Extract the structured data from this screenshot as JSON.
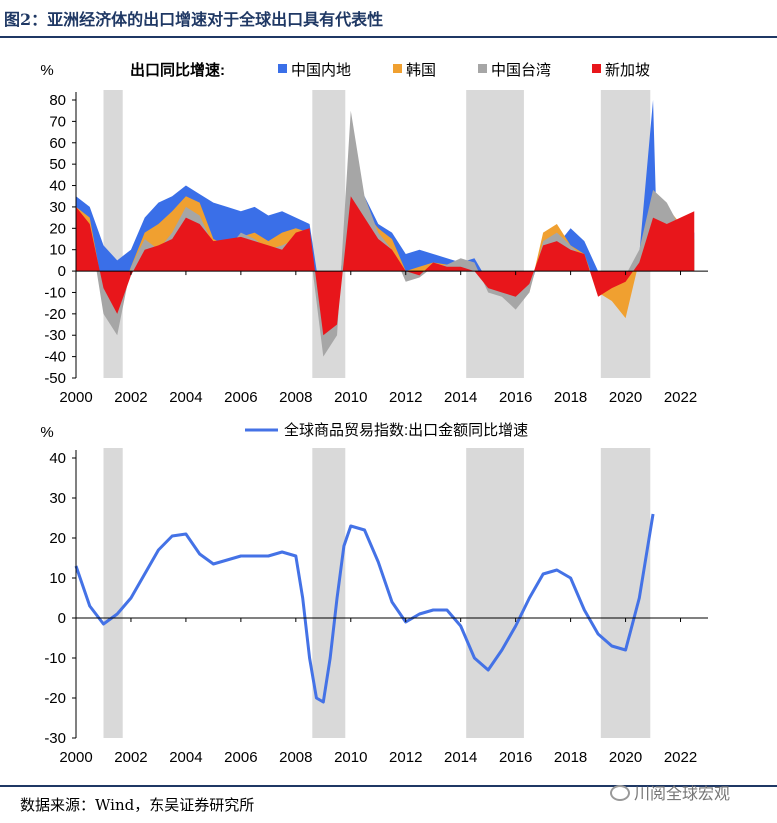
{
  "figure": {
    "title": "图2：亚洲经济体的出口增速对于全球出口具有代表性",
    "source": "数据来源：Wind，东吴证券研究所",
    "watermark": "川阅全球宏观"
  },
  "chart_data": [
    {
      "type": "area",
      "ylabel": "%",
      "legend_title": "出口同比增速:",
      "legend_position": "top",
      "ylim": [
        -50,
        80
      ],
      "yticks": [
        80,
        70,
        60,
        50,
        40,
        30,
        20,
        10,
        0,
        -10,
        -20,
        -30,
        -40,
        -50
      ],
      "xlim": [
        2000,
        2023.0
      ],
      "xticks": [
        "2000",
        "2002",
        "2004",
        "2006",
        "2008",
        "2010",
        "2012",
        "2014",
        "2016",
        "2018",
        "2020",
        "2022"
      ],
      "shaded_periods": [
        [
          2001.0,
          2001.7
        ],
        [
          2008.6,
          2009.8
        ],
        [
          2014.2,
          2016.3
        ],
        [
          2019.1,
          2020.9
        ]
      ],
      "series": [
        {
          "name": "中国内地",
          "color": "#3a6fe8",
          "x": [
            2000.0,
            2000.5,
            2001.0,
            2001.5,
            2002.0,
            2002.5,
            2003.0,
            2003.5,
            2004.0,
            2004.5,
            2005.0,
            2005.5,
            2006.0,
            2006.5,
            2007.0,
            2007.5,
            2008.0,
            2008.5,
            2009.0,
            2009.5,
            2010.0,
            2010.5,
            2011.0,
            2011.5,
            2012.0,
            2012.5,
            2013.0,
            2013.5,
            2014.0,
            2014.5,
            2015.0,
            2015.5,
            2016.0,
            2016.5,
            2017.0,
            2017.5,
            2018.0,
            2018.5,
            2019.0,
            2019.5,
            2020.0,
            2020.5,
            2021.0,
            2021.1,
            2021.2,
            2021.5,
            2022.0,
            2022.5
          ],
          "values": [
            35,
            30,
            12,
            5,
            10,
            25,
            32,
            35,
            40,
            36,
            32,
            30,
            28,
            30,
            26,
            28,
            25,
            22,
            -20,
            -15,
            40,
            35,
            22,
            18,
            8,
            10,
            8,
            6,
            4,
            6,
            -5,
            -3,
            -10,
            -8,
            10,
            12,
            20,
            14,
            0,
            -2,
            -15,
            8,
            80,
            35,
            30,
            25,
            20,
            18
          ]
        },
        {
          "name": "韩国",
          "color": "#f0a030",
          "x": [
            2000.0,
            2000.5,
            2001.0,
            2001.5,
            2002.0,
            2002.5,
            2003.0,
            2003.5,
            2004.0,
            2004.5,
            2005.0,
            2005.5,
            2006.0,
            2006.5,
            2007.0,
            2007.5,
            2008.0,
            2008.5,
            2009.0,
            2009.5,
            2010.0,
            2010.5,
            2011.0,
            2011.5,
            2012.0,
            2012.5,
            2013.0,
            2013.5,
            2014.0,
            2014.5,
            2015.0,
            2015.5,
            2016.0,
            2016.5,
            2017.0,
            2017.5,
            2018.0,
            2018.5,
            2019.0,
            2019.5,
            2020.0,
            2020.5,
            2021.0,
            2021.5,
            2022.0,
            2022.5
          ],
          "values": [
            30,
            25,
            -10,
            -15,
            2,
            18,
            22,
            28,
            35,
            32,
            15,
            12,
            16,
            18,
            14,
            18,
            20,
            18,
            -30,
            -20,
            30,
            28,
            20,
            15,
            0,
            2,
            4,
            3,
            3,
            2,
            -8,
            -12,
            -15,
            -10,
            18,
            22,
            12,
            8,
            -10,
            -14,
            -22,
            5,
            28,
            30,
            22,
            15
          ]
        },
        {
          "name": "中国台湾",
          "color": "#a6a6a6",
          "x": [
            2000.0,
            2000.5,
            2001.0,
            2001.5,
            2002.0,
            2002.5,
            2003.0,
            2003.5,
            2004.0,
            2004.5,
            2005.0,
            2005.5,
            2006.0,
            2006.5,
            2007.0,
            2007.5,
            2008.0,
            2008.5,
            2009.0,
            2009.5,
            2010.0,
            2010.5,
            2011.0,
            2011.5,
            2012.0,
            2012.5,
            2013.0,
            2013.5,
            2014.0,
            2014.5,
            2015.0,
            2015.5,
            2016.0,
            2016.5,
            2017.0,
            2017.5,
            2018.0,
            2018.5,
            2019.0,
            2019.5,
            2020.0,
            2020.5,
            2021.0,
            2021.5,
            2022.0,
            2022.5
          ],
          "values": [
            25,
            20,
            -20,
            -30,
            2,
            15,
            10,
            18,
            30,
            26,
            12,
            10,
            18,
            15,
            10,
            12,
            15,
            12,
            -40,
            -30,
            75,
            35,
            18,
            10,
            -5,
            -3,
            2,
            3,
            6,
            4,
            -10,
            -12,
            -18,
            -10,
            14,
            18,
            12,
            6,
            -8,
            -6,
            -2,
            10,
            38,
            32,
            20,
            14
          ]
        },
        {
          "name": "新加坡",
          "color": "#e8161b",
          "x": [
            2000.0,
            2000.5,
            2001.0,
            2001.5,
            2002.0,
            2002.5,
            2003.0,
            2003.5,
            2004.0,
            2004.5,
            2005.0,
            2005.5,
            2006.0,
            2006.5,
            2007.0,
            2007.5,
            2008.0,
            2008.5,
            2009.0,
            2009.5,
            2010.0,
            2010.5,
            2011.0,
            2011.5,
            2012.0,
            2012.5,
            2013.0,
            2013.5,
            2014.0,
            2014.5,
            2015.0,
            2015.5,
            2016.0,
            2016.5,
            2017.0,
            2017.5,
            2018.0,
            2018.5,
            2019.0,
            2019.5,
            2020.0,
            2020.5,
            2021.0,
            2021.5,
            2022.0,
            2022.5
          ],
          "values": [
            30,
            22,
            -8,
            -20,
            -2,
            10,
            12,
            15,
            25,
            22,
            14,
            15,
            16,
            14,
            12,
            10,
            18,
            20,
            -30,
            -25,
            35,
            25,
            15,
            10,
            0,
            -2,
            4,
            2,
            2,
            0,
            -8,
            -10,
            -12,
            -6,
            12,
            14,
            10,
            8,
            -12,
            -8,
            -5,
            4,
            25,
            22,
            25,
            28
          ]
        }
      ]
    },
    {
      "type": "line",
      "ylabel": "%",
      "ylim": [
        -30,
        40
      ],
      "yticks": [
        40,
        30,
        20,
        10,
        0,
        -10,
        -20,
        -30
      ],
      "xlim": [
        2000,
        2023.0
      ],
      "xticks": [
        "2000",
        "2002",
        "2004",
        "2006",
        "2008",
        "2010",
        "2012",
        "2014",
        "2016",
        "2018",
        "2020",
        "2022"
      ],
      "legend_position": "top",
      "shaded_periods": [
        [
          2001.0,
          2001.7
        ],
        [
          2008.6,
          2009.8
        ],
        [
          2014.2,
          2016.3
        ],
        [
          2019.1,
          2020.9
        ]
      ],
      "series": [
        {
          "name": "全球商品贸易指数:出口金额同比增速",
          "color": "#4472e6",
          "x": [
            2000.0,
            2000.5,
            2001.0,
            2001.5,
            2002.0,
            2002.5,
            2003.0,
            2003.5,
            2004.0,
            2004.5,
            2005.0,
            2005.5,
            2006.0,
            2006.5,
            2007.0,
            2007.5,
            2008.0,
            2008.25,
            2008.5,
            2008.75,
            2009.0,
            2009.25,
            2009.5,
            2009.75,
            2010.0,
            2010.5,
            2011.0,
            2011.5,
            2012.0,
            2012.5,
            2013.0,
            2013.5,
            2014.0,
            2014.5,
            2015.0,
            2015.5,
            2016.0,
            2016.5,
            2017.0,
            2017.5,
            2018.0,
            2018.5,
            2019.0,
            2019.5,
            2020.0,
            2020.5,
            2021.0
          ],
          "values": [
            13,
            3,
            -1.5,
            1,
            5,
            11,
            17,
            20.5,
            21,
            16,
            13.5,
            14.5,
            15.5,
            15.5,
            15.5,
            16.5,
            15.5,
            5,
            -10,
            -20,
            -21,
            -10,
            5,
            18,
            23,
            22,
            14,
            4,
            -1,
            1,
            2,
            2,
            -2,
            -10,
            -13,
            -8,
            -2,
            5,
            11,
            12,
            10,
            2,
            -4,
            -7,
            -8,
            5,
            26
          ]
        }
      ]
    }
  ]
}
